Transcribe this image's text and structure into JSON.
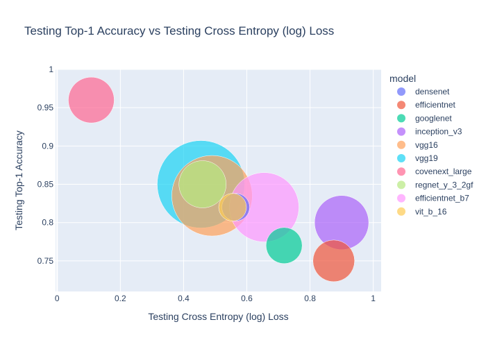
{
  "chart_data": {
    "type": "scatter",
    "title": "Testing Top-1 Accuracy vs Testing Cross Entropy (log) Loss",
    "xlabel": "Testing Cross Entropy (log) Loss",
    "ylabel": "Testing Top-1 Accuracy",
    "xlim": [
      -0.005,
      1.025
    ],
    "ylim": [
      0.71,
      1.0
    ],
    "xticks": [
      0,
      0.2,
      0.4,
      0.6,
      0.8,
      1
    ],
    "xtick_labels": [
      "0",
      "0.2",
      "0.4",
      "0.6",
      "0.8",
      "1"
    ],
    "yticks": [
      0.75,
      0.8,
      0.85,
      0.9,
      0.95,
      1
    ],
    "ytick_labels": [
      "0.75",
      "0.8",
      "0.85",
      "0.9",
      "0.95",
      "1"
    ],
    "grid": true,
    "legend_title": "model",
    "legend_position": "right",
    "series": [
      {
        "name": "densenet",
        "color": "#636efa",
        "points": [
          {
            "x": 0.565,
            "y": 0.82,
            "size": 20
          }
        ]
      },
      {
        "name": "efficientnet",
        "color": "#ef553b",
        "points": [
          {
            "x": 0.875,
            "y": 0.75,
            "size": 30
          }
        ]
      },
      {
        "name": "googlenet",
        "color": "#00cc96",
        "points": [
          {
            "x": 0.718,
            "y": 0.77,
            "size": 26
          }
        ]
      },
      {
        "name": "inception_v3",
        "color": "#ab63fa",
        "points": [
          {
            "x": 0.9,
            "y": 0.8,
            "size": 39
          }
        ]
      },
      {
        "name": "vgg16",
        "color": "#ffa15a",
        "points": [
          {
            "x": 0.49,
            "y": 0.835,
            "size": 58
          }
        ]
      },
      {
        "name": "vgg19",
        "color": "#19d3f3",
        "points": [
          {
            "x": 0.455,
            "y": 0.85,
            "size": 63
          }
        ]
      },
      {
        "name": "covenext_large",
        "color": "#ff6692",
        "points": [
          {
            "x": 0.108,
            "y": 0.96,
            "size": 33
          }
        ]
      },
      {
        "name": "regnet_y_3_2gf",
        "color": "#b6e880",
        "points": [
          {
            "x": 0.46,
            "y": 0.85,
            "size": 34
          }
        ]
      },
      {
        "name": "efficientnet_b7",
        "color": "#ff97ff",
        "points": [
          {
            "x": 0.655,
            "y": 0.82,
            "size": 50
          }
        ]
      },
      {
        "name": "vit_b_16",
        "color": "#fecb52",
        "points": [
          {
            "x": 0.555,
            "y": 0.82,
            "size": 20
          }
        ]
      }
    ]
  }
}
